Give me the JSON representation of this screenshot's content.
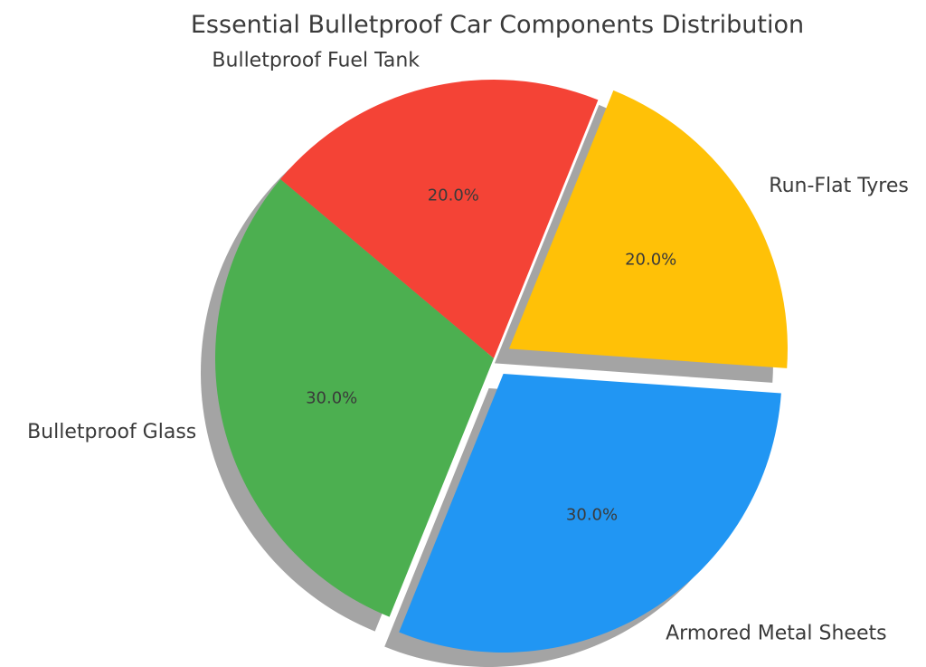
{
  "chart_data": {
    "type": "pie",
    "title": "Essential Bulletproof Car Components Distribution",
    "slices": [
      {
        "label": "Run-Flat Tyres",
        "value": 20,
        "pct_label": "20.0%",
        "color": "#FFC107",
        "explode": true
      },
      {
        "label": "Bulletproof Fuel Tank",
        "value": 20,
        "pct_label": "20.0%",
        "color": "#F44336",
        "explode": false
      },
      {
        "label": "Bulletproof Glass",
        "value": 30,
        "pct_label": "30.0%",
        "color": "#4CAF50",
        "explode": false
      },
      {
        "label": "Armored Metal Sheets",
        "value": 30,
        "pct_label": "30.0%",
        "color": "#2196F3",
        "explode": true
      }
    ],
    "start_angle_deg": -4,
    "shadow": true,
    "legend": "none"
  }
}
